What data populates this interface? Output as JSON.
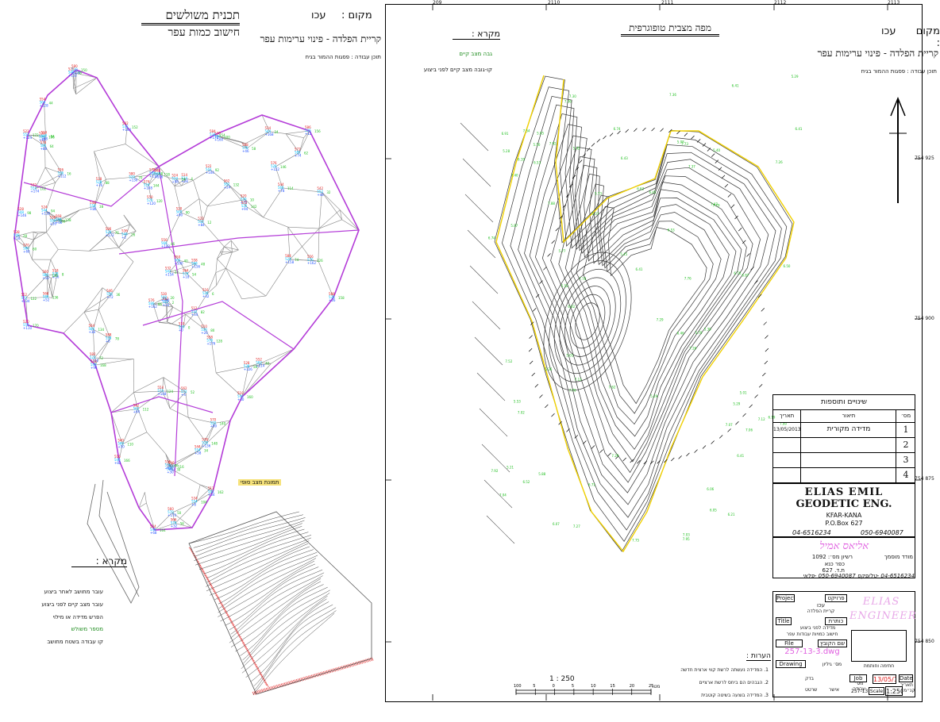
{
  "left_sheet": {
    "title": "תכנית משולשים",
    "subtitle": "חישוב כמות עפר",
    "place_label": "מקום :",
    "place_value": "עכו",
    "project_line": "קריית הפלדה - פינוי ערימות עפר",
    "work_content": "תוכן עבודה : פסגות ההמור בגיח",
    "legend_title": "מקרא :",
    "legend_items": [
      "עובר מחושב לאחר ביצוע",
      "עובר מצב קיים לפני ביצוע",
      "הפרש מדידה או מילוי",
      "מספר משולש",
      "קו עבודה בשטח מחושב"
    ],
    "model_label": "תמונת מצב סופי"
  },
  "right_sheet": {
    "title": "מפה מצבית טופוגרפית",
    "place_label": "מקום :",
    "place_value": "עכו",
    "project_line": "קריית הפלדה - פינוי ערימות עפר",
    "work_content": "תוכן עבודה : פסגות ההמור בגיח",
    "legend_title": "מקרא :",
    "legend_items": [
      "גבה מצב קיים",
      "קו-גובה מצב קיים לפני ביצוע"
    ],
    "grid_top": [
      "209",
      "2110",
      "2111",
      "2112",
      "2113"
    ],
    "grid_right": [
      "754 925",
      "754 900",
      "754 875",
      "754 850"
    ],
    "scale_text": "1 : 250",
    "scale_ticks": [
      "100",
      "5",
      "0",
      "5",
      "10",
      "15",
      "20",
      "25"
    ],
    "scale_unit": "מטר"
  },
  "revisions": {
    "header": "שינויים ותוספות",
    "columns": [
      "מס׳",
      "תיאור",
      "תאריך"
    ],
    "rows": [
      {
        "no": "1",
        "desc": "מדידה מקורית",
        "date": "13/05/2013"
      },
      {
        "no": "2",
        "desc": "",
        "date": ""
      },
      {
        "no": "3",
        "desc": "",
        "date": ""
      },
      {
        "no": "4",
        "desc": "",
        "date": ""
      }
    ]
  },
  "company": {
    "name": "ELIAS EMIL",
    "sub": "GEODETIC ENG.",
    "city": "KFAR-KANA",
    "pobox": "P.O.Box 627",
    "tel": "04-6516234",
    "mobile": "050-6940087",
    "heb_name": "אליאס אמיל",
    "heb_title": "מודד מוסמך",
    "license": "רשיון מס׳: 1092",
    "heb_city": "כפר כנא",
    "heb_pobox": "ת.ד. 627",
    "heb_phones": "04-6516234 -טל/פקס  050-6940087 -פלאי"
  },
  "block": {
    "project_label": "Project",
    "project_heb": "פרויקט",
    "project_value": "עכו",
    "project_value2": "קריית הפלדה",
    "title_label": "Title",
    "title_heb": "כותרת",
    "title_value": "מדידה לפני ביצוע",
    "title_value2": "חישוב כמויות עבודות עפר",
    "file_label": "File Name",
    "file_heb": "שם הקובץ",
    "file_value": "257-13-3.dwg",
    "drawing_label": "Drawing No",
    "drawing_heb": "מס׳ גיליון",
    "job_label": "Job No",
    "job_heb": "מס׳ עבודה",
    "job_value": "257-13",
    "date_label": "Date",
    "date_heb": "תאריך",
    "date_value": "13/05/13",
    "scale_label": "Scale",
    "scale_heb": "קנ״מ",
    "scale_value": "1:250",
    "stamp_caption": "חתימה וחותמת",
    "logo_text": "ELIAS ENGINEER",
    "notes_title": "הערות :",
    "notes": [
      "1. המדידה נעשתה לרשת קווי ארצית חדשה",
      "2. הגבהים הם ביחס לרשת ארציים",
      "3. המדידה בוצעה בשיטה קוטבית"
    ],
    "checked": "בדק",
    "drawn": "שרטט",
    "approved": "אישר"
  },
  "colors": {
    "boundary": "#b43cd8",
    "contour": "#333333",
    "label_green": "#1fbf1f",
    "label_blue": "#2050ff",
    "label_red": "#e02020",
    "label_cyan": "#00c0ff",
    "edge_yellow": "#f0d000",
    "pink": "#e060e0"
  }
}
